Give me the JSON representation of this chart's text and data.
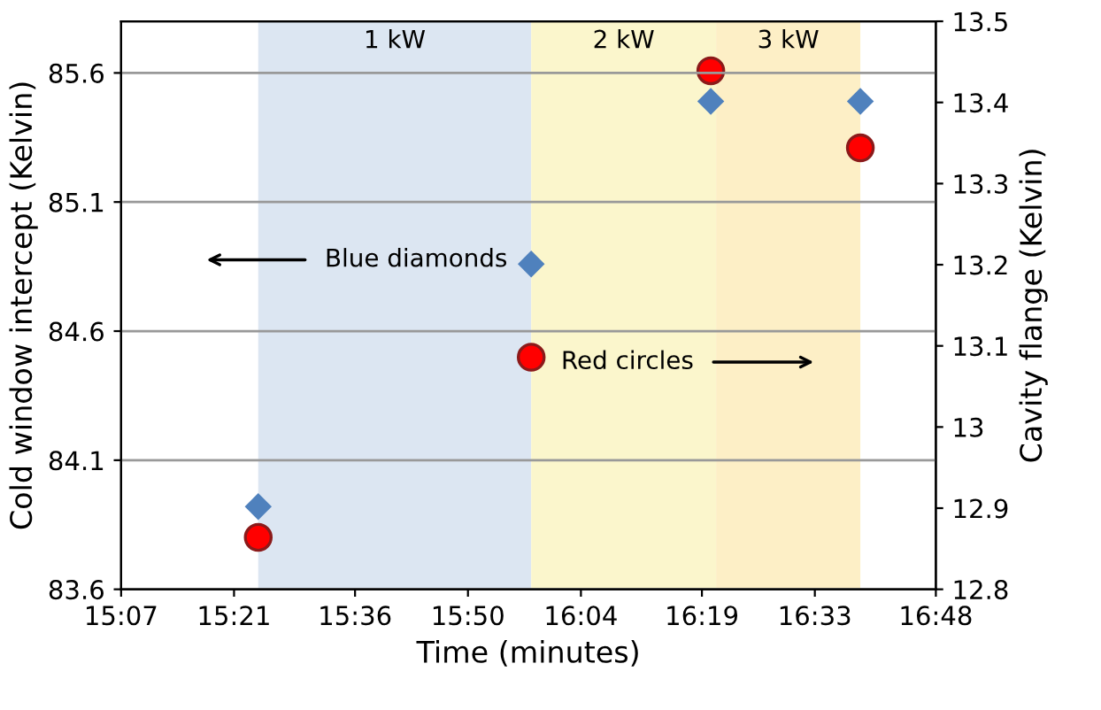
{
  "chart_data": {
    "type": "scatter",
    "xlabel": "Time (minutes)",
    "ylabel": "Cold window intercept (Kelvin)",
    "y2label": "Cavity flange (Kelvin)",
    "xlim": [
      15.1167,
      16.8
    ],
    "xticks": [
      {
        "value": 15.1167,
        "label": "15:07"
      },
      {
        "value": 15.35,
        "label": "15:21"
      },
      {
        "value": 15.6,
        "label": "15:36"
      },
      {
        "value": 15.8333,
        "label": "15:50"
      },
      {
        "value": 16.0667,
        "label": "16:04"
      },
      {
        "value": 16.3167,
        "label": "16:19"
      },
      {
        "value": 16.55,
        "label": "16:33"
      },
      {
        "value": 16.8,
        "label": "16:48"
      }
    ],
    "ylim": [
      83.6,
      85.8
    ],
    "yticks": [
      83.6,
      84.1,
      84.6,
      85.1,
      85.6
    ],
    "y2lim": [
      12.8,
      13.5
    ],
    "y2ticks": [
      12.8,
      12.9,
      13,
      13.1,
      13.2,
      13.3,
      13.4,
      13.5
    ],
    "grid": "y",
    "series": [
      {
        "color": "#4f81bd",
        "marker": "diamond",
        "x": [
          15.4,
          15.964,
          16.335,
          16.644
        ],
        "values": [
          83.92,
          84.86,
          85.49,
          85.49
        ]
      },
      {
        "color": "#ff0000",
        "marker": "circle",
        "axis": "y2",
        "x": [
          15.4,
          15.964,
          16.335,
          16.644
        ],
        "values": [
          12.864,
          13.086,
          13.439,
          13.344
        ]
      }
    ],
    "bands": [
      {
        "axis": "x",
        "from": 15.4,
        "to": 15.964,
        "label": "1 kW",
        "color": "#dce6f2"
      },
      {
        "axis": "x",
        "from": 15.964,
        "to": 16.346,
        "label": "2 kW",
        "color": "#fbf6cc"
      },
      {
        "axis": "x",
        "from": 16.346,
        "to": 16.644,
        "label": "3 kW",
        "color": "#fdefc6"
      }
    ],
    "annotations": [
      "Blue diamonds",
      "Red circles"
    ]
  }
}
